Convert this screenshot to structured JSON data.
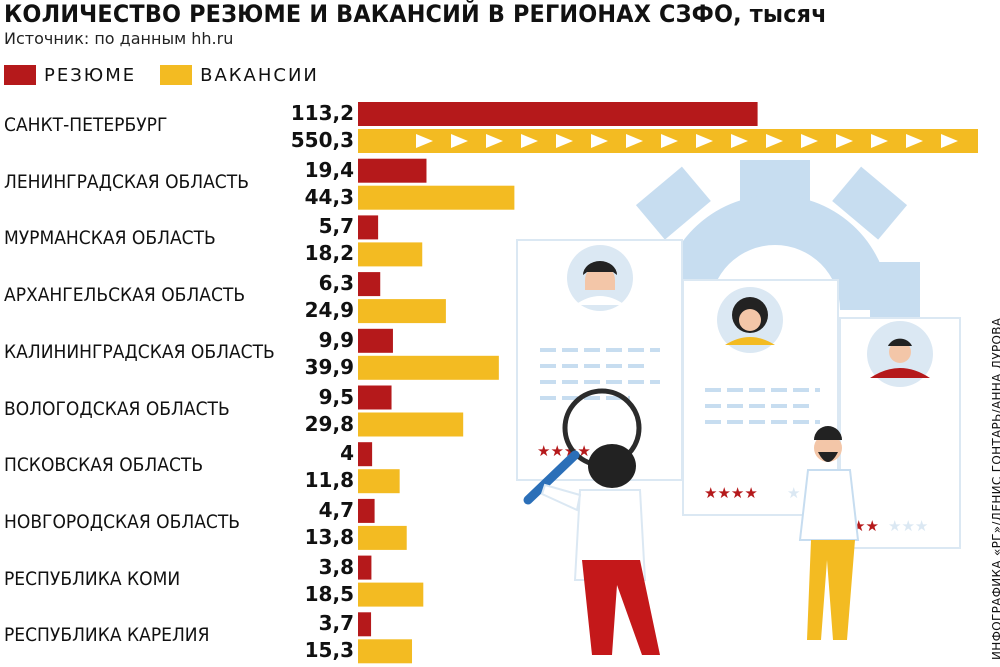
{
  "title": "КОЛИЧЕСТВО РЕЗЮМЕ И ВАКАНСИЙ В РЕГИОНАХ СЗФО, тысяч",
  "source": "Источник: по данным hh.ru",
  "credit": "ИНФОГРАФИКА «РГ»/ДЕНИС ГОНТАРЬ/АННА ДУРОВА",
  "chart_data": {
    "type": "bar",
    "orientation": "horizontal",
    "categories": [
      "САНКТ-ПЕТЕРБУРГ",
      "ЛЕНИНГРАДСКАЯ ОБЛАСТЬ",
      "МУРМАНСКАЯ ОБЛАСТЬ",
      "АРХАНГЕЛЬСКАЯ ОБЛАСТЬ",
      "КАЛИНИНГРАДСКАЯ ОБЛАСТЬ",
      "ВОЛОГОДСКАЯ ОБЛАСТЬ",
      "ПСКОВСКАЯ ОБЛАСТЬ",
      "НОВГОРОДСКАЯ ОБЛАСТЬ",
      "РЕСПУБЛИКА КОМИ",
      "РЕСПУБЛИКА КАРЕЛИЯ"
    ],
    "series": [
      {
        "name": "РЕЗЮМЕ",
        "color": "#b5191b",
        "values": [
          113.2,
          19.4,
          5.7,
          6.3,
          9.9,
          9.5,
          4,
          4.7,
          3.8,
          3.7
        ],
        "labels": [
          "113,2",
          "19,4",
          "5,7",
          "6,3",
          "9,9",
          "9,5",
          "4",
          "4,7",
          "3,8",
          "3,7"
        ]
      },
      {
        "name": "ВАКАНСИИ",
        "color": "#f3bb22",
        "values": [
          550.3,
          44.3,
          18.2,
          24.9,
          39.9,
          29.8,
          11.8,
          13.8,
          18.5,
          15.3
        ],
        "labels": [
          "550,3",
          "44,3",
          "18,2",
          "24,9",
          "39,9",
          "29,8",
          "11,8",
          "13,8",
          "18,5",
          "15,3"
        ]
      }
    ],
    "axis_break": {
      "series": "ВАКАНСИИ",
      "category": "САНКТ-ПЕТЕРБУРГ"
    },
    "legend": "top-left",
    "grid": false
  }
}
